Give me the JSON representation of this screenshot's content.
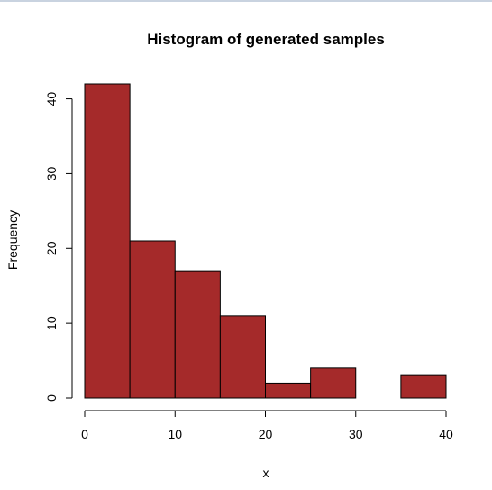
{
  "chart_data": {
    "type": "bar",
    "title": "Histogram of generated samples",
    "xlabel": "x",
    "ylabel": "Frequency",
    "bins": [
      {
        "start": 0,
        "end": 5,
        "count": 42
      },
      {
        "start": 5,
        "end": 10,
        "count": 21
      },
      {
        "start": 10,
        "end": 15,
        "count": 17
      },
      {
        "start": 15,
        "end": 20,
        "count": 11
      },
      {
        "start": 20,
        "end": 25,
        "count": 2
      },
      {
        "start": 25,
        "end": 30,
        "count": 4
      },
      {
        "start": 30,
        "end": 35,
        "count": 0
      },
      {
        "start": 35,
        "end": 40,
        "count": 3
      }
    ],
    "xlim": [
      0,
      40
    ],
    "ylim": [
      0,
      42
    ],
    "xticks": [
      0,
      10,
      20,
      30,
      40
    ],
    "yticks": [
      0,
      10,
      20,
      30,
      40
    ],
    "bar_color": "#a52a2a",
    "grid": false
  }
}
